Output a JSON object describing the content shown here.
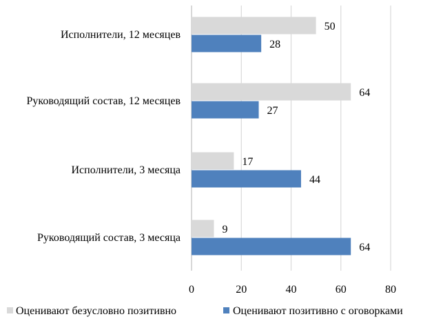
{
  "chart_data": {
    "type": "bar",
    "orientation": "horizontal",
    "categories": [
      "Исполнители, 12 месяцев",
      "Руководящий состав, 12 месяцев",
      "Исполнители, 3 месяца",
      "Руководящий состав, 3 месяца"
    ],
    "series": [
      {
        "name": "Оценивают безусловно позитивно",
        "color": "#d9d9d9",
        "values": [
          50,
          64,
          17,
          9
        ]
      },
      {
        "name": "Оценивают позитивно с оговорками",
        "color": "#4f81bd",
        "values": [
          28,
          27,
          44,
          64
        ]
      }
    ],
    "xlim": [
      0,
      80
    ],
    "xticks": [
      "0",
      "20",
      "40",
      "60",
      "80"
    ],
    "grid": "vertical",
    "legend": "bottom",
    "data_labels": true
  }
}
